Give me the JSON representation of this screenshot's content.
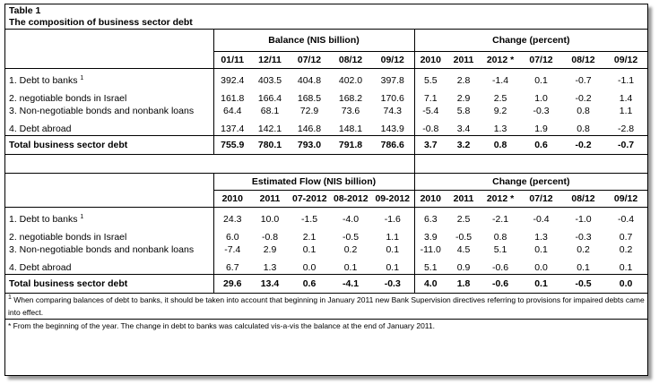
{
  "table_label": "Table 1",
  "table_title": "The composition of business sector debt",
  "top": {
    "group_left": "Balance (NIS billion)",
    "group_right": "Change (percent)",
    "cols_left": [
      "01/11",
      "12/11",
      "07/12",
      "08/12",
      "09/12"
    ],
    "cols_right": [
      "2010",
      "2011",
      "2012 *",
      "07/12",
      "08/12",
      "09/12"
    ],
    "rows": [
      {
        "label": "1. Debt to banks",
        "sup": "1",
        "left": [
          "392.4",
          "403.5",
          "404.8",
          "402.0",
          "397.8"
        ],
        "right": [
          "5.5",
          "2.8",
          "-1.4",
          "0.1",
          "-0.7",
          "-1.1"
        ]
      },
      {
        "label": "2. negotiable bonds in Israel",
        "sup": "",
        "left": [
          "161.8",
          "166.4",
          "168.5",
          "168.2",
          "170.6"
        ],
        "right": [
          "7.1",
          "2.9",
          "2.5",
          "1.0",
          "-0.2",
          "1.4"
        ]
      },
      {
        "label": "3. Non-negotiable bonds and nonbank loans",
        "sup": "",
        "left": [
          "64.4",
          "68.1",
          "72.9",
          "73.6",
          "74.3"
        ],
        "right": [
          "-5.4",
          "5.8",
          "9.2",
          "-0.3",
          "0.8",
          "1.1"
        ]
      },
      {
        "label": "4. Debt abroad",
        "sup": "",
        "left": [
          "137.4",
          "142.1",
          "146.8",
          "148.1",
          "143.9"
        ],
        "right": [
          "-0.8",
          "3.4",
          "1.3",
          "1.9",
          "0.8",
          "-2.8"
        ]
      }
    ],
    "total": {
      "label": "Total business sector debt",
      "left": [
        "755.9",
        "780.1",
        "793.0",
        "791.8",
        "786.6"
      ],
      "right": [
        "3.7",
        "3.2",
        "0.8",
        "0.6",
        "-0.2",
        "-0.7"
      ]
    }
  },
  "bottom": {
    "group_left": "Estimated Flow (NIS billion)",
    "group_right": "Change (percent)",
    "cols_left": [
      "2010",
      "2011",
      "07-2012",
      "08-2012",
      "09-2012"
    ],
    "cols_right": [
      "2010",
      "2011",
      "2012 *",
      "07/12",
      "08/12",
      "09/12"
    ],
    "rows": [
      {
        "label": "1. Debt to banks",
        "sup": "1",
        "left": [
          "24.3",
          "10.0",
          "-1.5",
          "-4.0",
          "-1.6"
        ],
        "right": [
          "6.3",
          "2.5",
          "-2.1",
          "-0.4",
          "-1.0",
          "-0.4"
        ]
      },
      {
        "label": "2. negotiable bonds in Israel",
        "sup": "",
        "left": [
          "6.0",
          "-0.8",
          "2.1",
          "-0.5",
          "1.1"
        ],
        "right": [
          "3.9",
          "-0.5",
          "0.8",
          "1.3",
          "-0.3",
          "0.7"
        ]
      },
      {
        "label": "3. Non-negotiable bonds and nonbank loans",
        "sup": "",
        "left": [
          "-7.4",
          "2.9",
          "0.1",
          "0.2",
          "0.1"
        ],
        "right": [
          "-11.0",
          "4.5",
          "5.1",
          "0.1",
          "0.2",
          "0.2"
        ]
      },
      {
        "label": "4. Debt abroad",
        "sup": "",
        "left": [
          "6.7",
          "1.3",
          "0.0",
          "0.1",
          "0.1"
        ],
        "right": [
          "5.1",
          "0.9",
          "-0.6",
          "0.0",
          "0.1",
          "0.1"
        ]
      }
    ],
    "total": {
      "label": "Total business sector debt",
      "left": [
        "29.6",
        "13.4",
        "0.6",
        "-4.1",
        "-0.3"
      ],
      "right": [
        "4.0",
        "1.8",
        "-0.6",
        "0.1",
        "-0.5",
        "0.0"
      ]
    }
  },
  "footnotes": {
    "note1_marker": "1",
    "note1_line1": "When comparing balances of debt to banks, it should be taken into account that beginning in January 2011 new Bank Supervision directives referring to provisions for impaired debts came",
    "note1_line2": "into effect.",
    "note2": "* From the beginning of the year. The change in debt to banks was calculated vis-a-vis the balance at the end of January 2011."
  }
}
